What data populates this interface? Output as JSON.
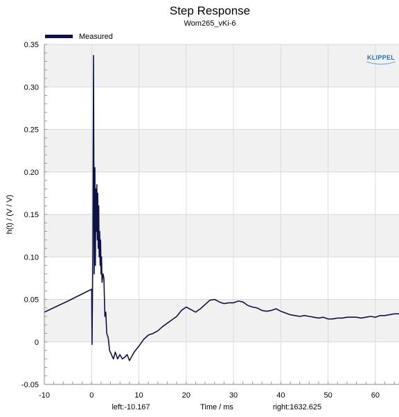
{
  "chart_data": {
    "type": "line",
    "title": "Step Response",
    "subtitle": "Wom265_vKi-6",
    "xlabel": "Time / ms",
    "ylabel": "h(t) / (V / V)",
    "xlim": [
      -10,
      65
    ],
    "ylim": [
      -0.05,
      0.35
    ],
    "x_ticks": [
      -10,
      0,
      10,
      20,
      30,
      40,
      50,
      60
    ],
    "y_ticks": [
      "-0.05",
      "0",
      "0.05",
      "0.10",
      "0.15",
      "0.20",
      "0.25",
      "0.30",
      "0.35"
    ],
    "y_tick_values": [
      -0.05,
      0,
      0.05,
      0.1,
      0.15,
      0.2,
      0.25,
      0.3,
      0.35
    ],
    "legend_position": "top-left",
    "grid": true,
    "series": [
      {
        "name": "Measured",
        "color": "#0d1147",
        "x": [
          -10,
          -5,
          0,
          0.1,
          0.25,
          0.4,
          0.55,
          0.7,
          0.8,
          0.9,
          1.0,
          1.1,
          1.2,
          1.3,
          1.4,
          1.5,
          1.6,
          1.7,
          1.8,
          1.9,
          2.0,
          2.1,
          2.2,
          2.4,
          2.6,
          2.8,
          3.0,
          3.2,
          3.5,
          3.8,
          4.2,
          4.6,
          5.0,
          5.5,
          6.0,
          6.5,
          7.0,
          7.5,
          8.0,
          9.0,
          10,
          11,
          12,
          13,
          14,
          15,
          16,
          17,
          18,
          19,
          20,
          21,
          22,
          23,
          24,
          25,
          26,
          27,
          28,
          29,
          30,
          31,
          32,
          33,
          34,
          35,
          36,
          37,
          38,
          39,
          40,
          41,
          42,
          43,
          44,
          45,
          46,
          47,
          48,
          49,
          50,
          51,
          52,
          53,
          54,
          55,
          56,
          57,
          58,
          59,
          60,
          61,
          62,
          63,
          64,
          65
        ],
        "values": [
          0.035,
          0.048,
          0.062,
          -0.003,
          0.1,
          0.337,
          0.08,
          0.205,
          0.09,
          0.18,
          0.13,
          0.185,
          0.12,
          0.175,
          0.11,
          0.16,
          0.1,
          0.13,
          0.09,
          0.12,
          0.08,
          0.1,
          0.07,
          0.08,
          0.075,
          0.03,
          0.035,
          0.01,
          0.005,
          -0.01,
          -0.015,
          -0.02,
          -0.012,
          -0.02,
          -0.015,
          -0.02,
          -0.018,
          -0.015,
          -0.022,
          -0.012,
          -0.005,
          0.003,
          0.008,
          0.01,
          0.013,
          0.018,
          0.022,
          0.026,
          0.03,
          0.037,
          0.041,
          0.038,
          0.035,
          0.039,
          0.044,
          0.049,
          0.05,
          0.047,
          0.045,
          0.046,
          0.046,
          0.048,
          0.047,
          0.043,
          0.041,
          0.04,
          0.037,
          0.036,
          0.037,
          0.039,
          0.036,
          0.034,
          0.032,
          0.031,
          0.03,
          0.031,
          0.03,
          0.029,
          0.028,
          0.029,
          0.027,
          0.027,
          0.028,
          0.028,
          0.029,
          0.029,
          0.029,
          0.028,
          0.029,
          0.03,
          0.029,
          0.031,
          0.031,
          0.032,
          0.033,
          0.033
        ]
      }
    ],
    "footer": {
      "left": "left:-10.167",
      "right": "right:1632.625"
    },
    "logo": "KLIPPEL"
  }
}
